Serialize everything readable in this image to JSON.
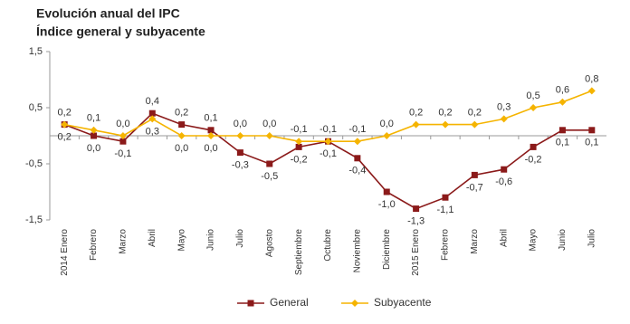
{
  "chart_data": {
    "type": "line",
    "title": "Evolución anual del IPC",
    "subtitle": "Índice general y subyacente",
    "categories": [
      "2014 Enero",
      "Febrero",
      "Marzo",
      "Abril",
      "Mayo",
      "Junio",
      "Julio",
      "Agosto",
      "Septiembre",
      "Octubre",
      "Noviembre",
      "Diciembre",
      "2015 Enero",
      "Febrero",
      "Marzo",
      "Abril",
      "Mayo",
      "Junio",
      "Julio"
    ],
    "series": [
      {
        "name": "General",
        "color": "#8b1a1a",
        "values": [
          0.2,
          0.0,
          -0.1,
          0.4,
          0.2,
          0.1,
          -0.3,
          -0.5,
          -0.2,
          -0.1,
          -0.4,
          -1.0,
          -1.3,
          -1.1,
          -0.7,
          -0.6,
          -0.2,
          0.1,
          0.1
        ],
        "value_labels": [
          "0,2",
          "0,0",
          "-0,1",
          "0,4",
          "0,2",
          "0,1",
          "-0,3",
          "-0,5",
          "-0,2",
          "-0,1",
          "-0,4",
          "-1,0",
          "-1,3",
          "-1,1",
          "-0,7",
          "-0,6",
          "-0,2",
          "0,1",
          "0,1"
        ]
      },
      {
        "name": "Subyacente",
        "color": "#f5b400",
        "values": [
          0.2,
          0.1,
          0.0,
          0.3,
          0.0,
          0.0,
          0.0,
          0.0,
          -0.1,
          -0.1,
          -0.1,
          0.0,
          0.2,
          0.2,
          0.2,
          0.3,
          0.5,
          0.6,
          0.8
        ],
        "value_labels": [
          "0,2",
          "0,1",
          "0,0",
          "0,3",
          "0,0",
          "0,0",
          "0,0",
          "0,0",
          "-0,1",
          "-0,1",
          "-0,1",
          "0,0",
          "0,2",
          "0,2",
          "0,2",
          "0,3",
          "0,5",
          "0,6",
          "0,8"
        ]
      }
    ],
    "ylim": [
      -1.5,
      1.5
    ],
    "yticks": [
      {
        "value": -1.5,
        "label": "-1,5"
      },
      {
        "value": -0.5,
        "label": "-0,5"
      },
      {
        "value": 0.5,
        "label": "0,5"
      },
      {
        "value": 1.5,
        "label": "1,5"
      }
    ],
    "legend": "bottom"
  }
}
